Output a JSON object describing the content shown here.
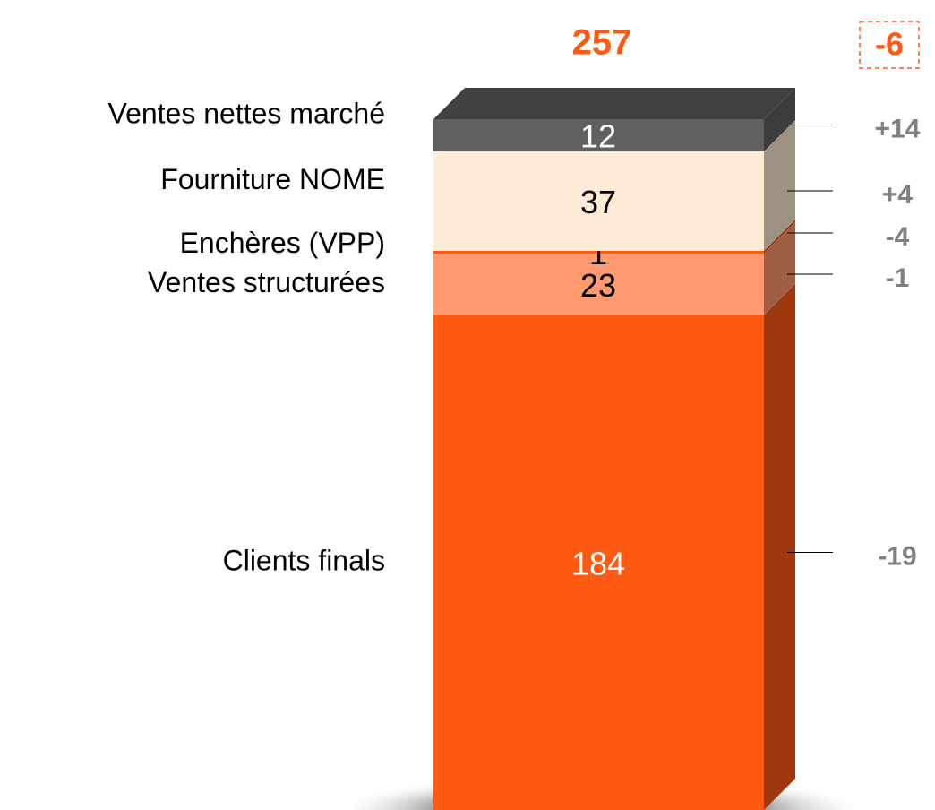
{
  "chart_data": {
    "type": "bar",
    "stacked": true,
    "series": [
      {
        "name": "Clients finals",
        "color": "#ff5a14",
        "label_color": "#ffffff",
        "values": [
          184
        ]
      },
      {
        "name": "Ventes structurées",
        "color": "#ff9a70",
        "label_color": "#000000",
        "values": [
          23
        ]
      },
      {
        "name": "Enchères (VPP)",
        "color": "#ff5a14",
        "label_color": "#000000",
        "values": [
          1
        ]
      },
      {
        "name": "Fourniture NOME",
        "color": "#fdebd5",
        "label_color": "#000000",
        "values": [
          37
        ]
      },
      {
        "name": "Ventes nettes marché",
        "color": "#606060",
        "label_color": "#ffffff",
        "values": [
          12
        ]
      }
    ],
    "total": 257,
    "total_change": -6,
    "changes": [
      -19,
      -1,
      -4,
      4,
      14
    ],
    "change_labels": [
      "-19",
      "-1",
      "-4",
      "+4",
      "+14"
    ]
  }
}
